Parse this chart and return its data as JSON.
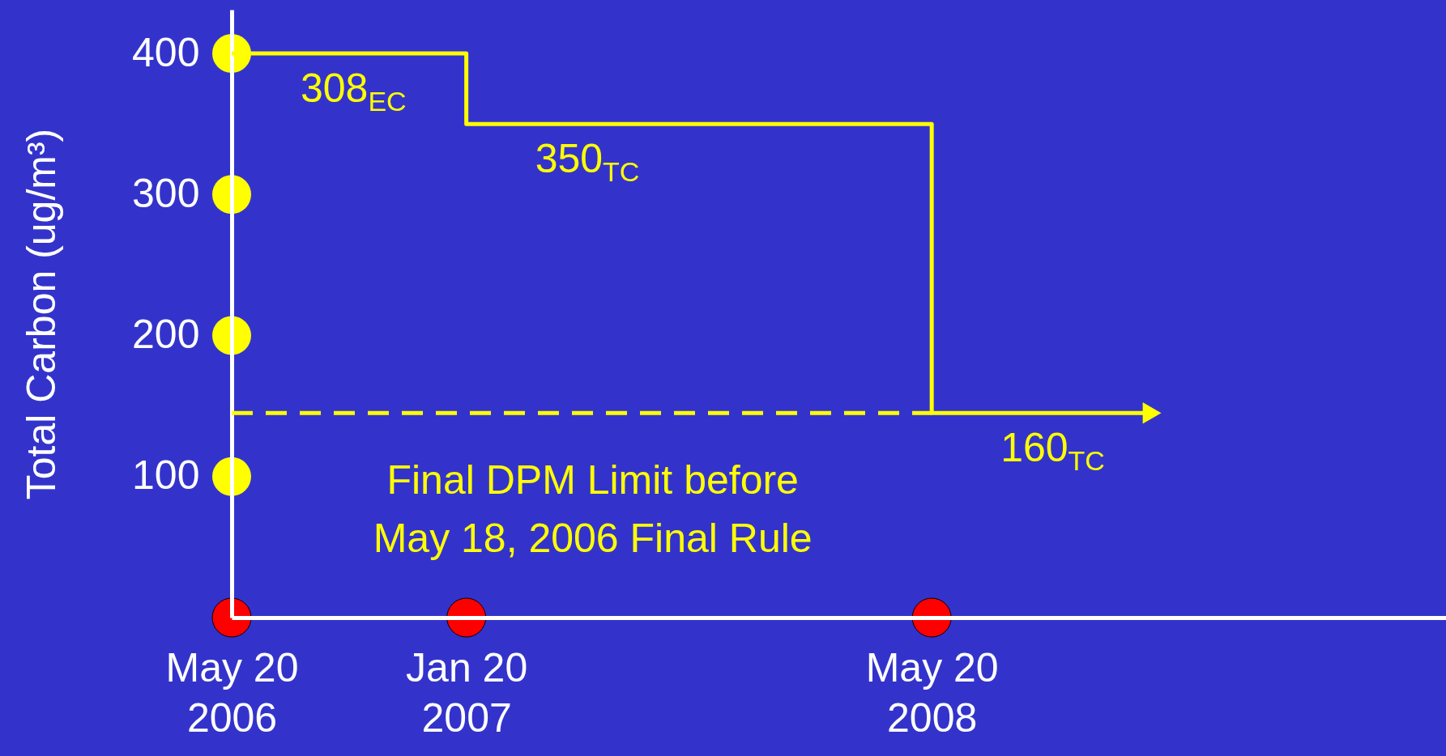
{
  "chart_data": {
    "type": "step",
    "ylabel": "Total Carbon (ug/m³)",
    "xlim": [
      "2006-05-20",
      "2009-11-08"
    ],
    "ylim": [
      0,
      431
    ],
    "xticks": [
      {
        "value": "2006-05-20",
        "label": "May 20\n2006"
      },
      {
        "value": "2007-01-20",
        "label": "Jan 20\n2007"
      },
      {
        "value": "2008-05-20",
        "label": "May 20\n2008"
      }
    ],
    "yticks": [
      100,
      200,
      300,
      400
    ],
    "series": [
      {
        "type": "step",
        "color": "#ffff00",
        "x": [
          "2006-05-20",
          "2007-01-20",
          "2008-05-20",
          "2009-01-05"
        ],
        "values": [
          400,
          350,
          145,
          145
        ]
      },
      {
        "type": "line",
        "line_style": "dashed",
        "color": "#ffff00",
        "x": [
          "2006-05-20",
          "2008-05-20"
        ],
        "values": [
          145,
          145
        ]
      }
    ],
    "annotations": [
      "308$_{EC}$",
      "350$_{TC}$",
      "160$_{TC}$",
      "Final DPM Limit before\nMay 18, 2006 Final Rule"
    ]
  }
}
